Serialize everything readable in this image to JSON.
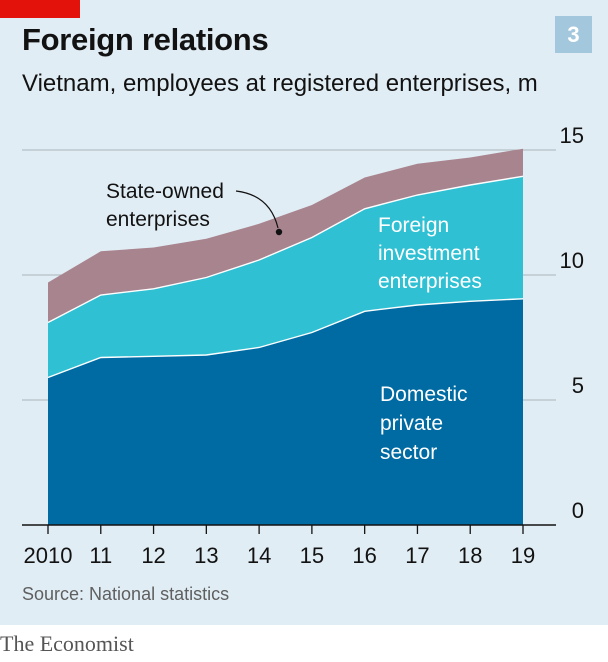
{
  "header": {
    "title": "Foreign relations",
    "subtitle": "Vietnam, employees at registered enterprises, m",
    "chart_number": "3"
  },
  "footer": {
    "source": "Source: National statistics",
    "brand": "The Economist"
  },
  "colors": {
    "background": "#e1edf4",
    "brand_red": "#e3120b",
    "domestic": "#006ba2",
    "foreign": "#2fc1d3",
    "state": "#a8848f",
    "badge": "#a3c7dd"
  },
  "chart_data": {
    "type": "area",
    "stacked": true,
    "title": "Foreign relations",
    "subtitle": "Vietnam, employees at registered enterprises, m",
    "x": [
      "2010",
      "11",
      "12",
      "13",
      "14",
      "15",
      "16",
      "17",
      "18",
      "19"
    ],
    "ylim": [
      0,
      15
    ],
    "yticks": [
      "0",
      "5",
      "10",
      "15"
    ],
    "y_axis_side": "right",
    "grid": true,
    "series": [
      {
        "name": "Domestic private sector",
        "values": [
          5.9,
          6.7,
          6.75,
          6.8,
          7.1,
          7.7,
          8.55,
          8.8,
          8.95,
          9.05
        ],
        "color": "#006ba2"
      },
      {
        "name": "Foreign investment enterprises",
        "values": [
          2.2,
          2.5,
          2.7,
          3.1,
          3.5,
          3.8,
          4.1,
          4.4,
          4.65,
          4.9
        ],
        "color": "#2fc1d3"
      },
      {
        "name": "State-owned enterprises",
        "values": [
          1.6,
          1.75,
          1.65,
          1.55,
          1.45,
          1.3,
          1.25,
          1.25,
          1.1,
          1.1
        ],
        "color": "#a8848f"
      }
    ],
    "annotations": [
      {
        "series": 2,
        "lines": [
          "State-owned",
          "enterprises"
        ],
        "color": "#121212"
      },
      {
        "series": 1,
        "lines": [
          "Foreign",
          "investment",
          "enterprises"
        ],
        "color": "#ffffff"
      },
      {
        "series": 0,
        "lines": [
          "Domestic",
          "private",
          "sector"
        ],
        "color": "#ffffff"
      }
    ],
    "source": "Source: National statistics"
  }
}
